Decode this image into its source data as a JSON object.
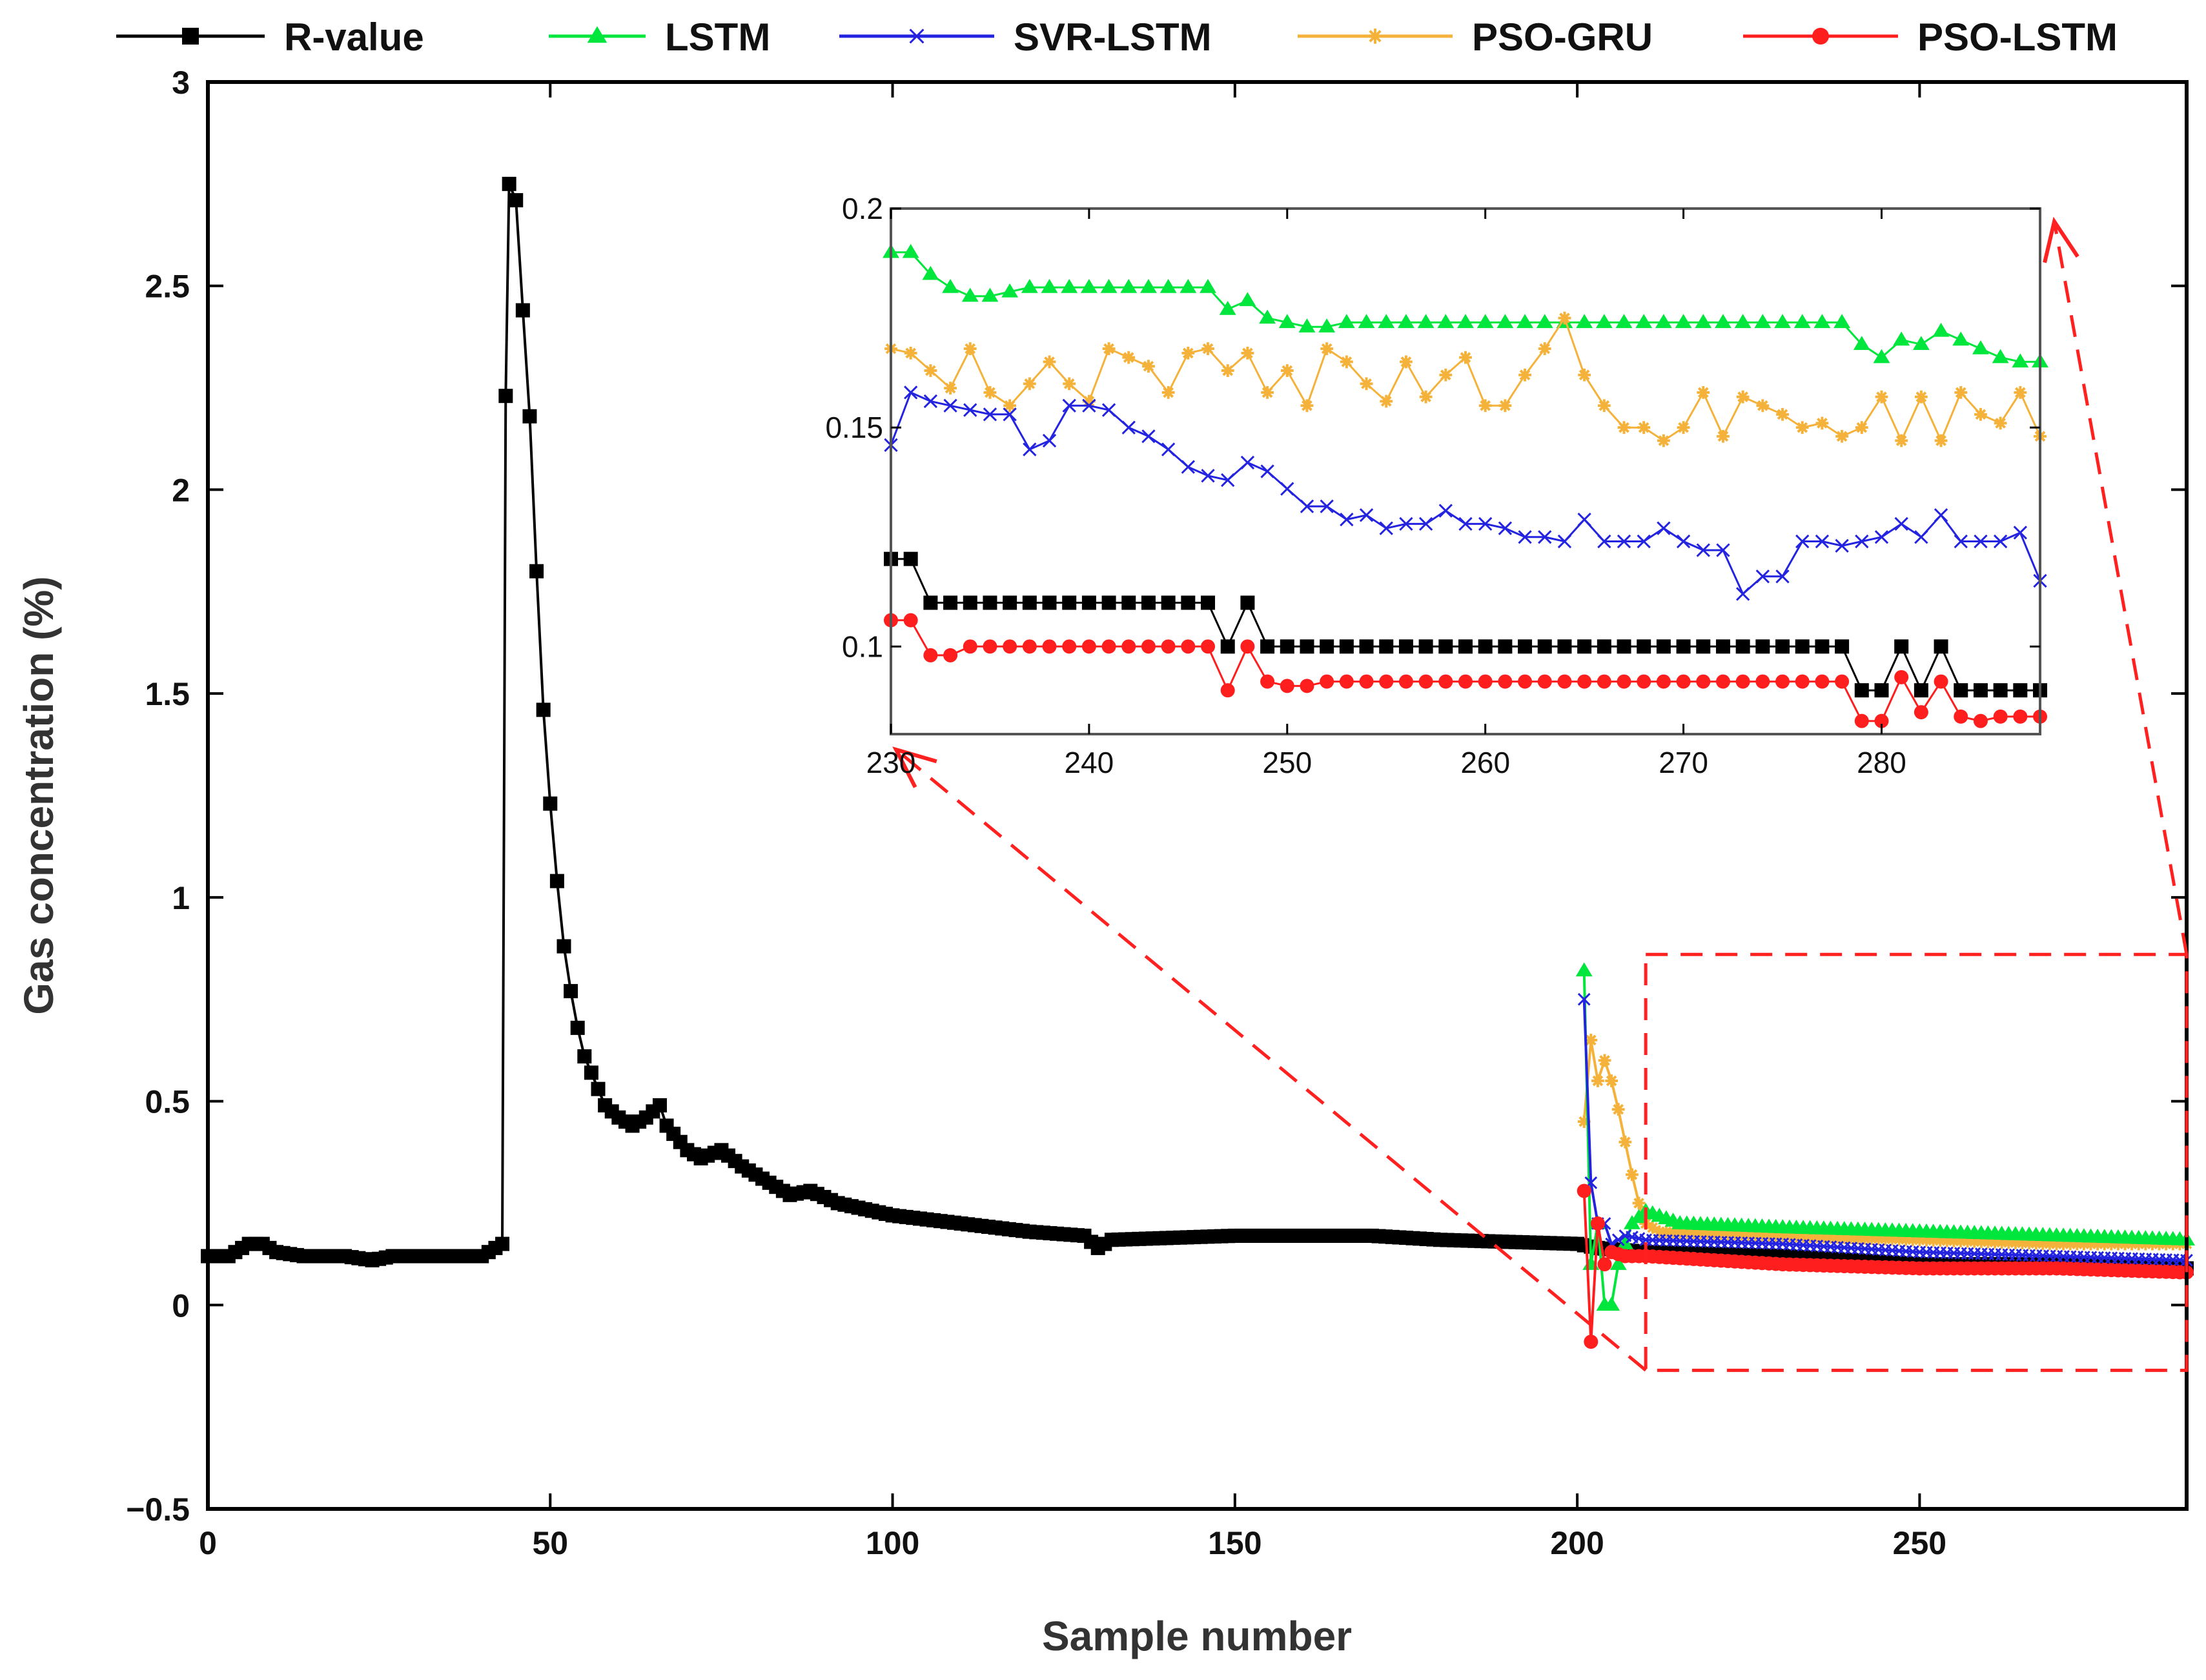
{
  "chart_data": {
    "type": "line",
    "xlabel": "Sample number",
    "ylabel": "Gas concentration (%)",
    "xlim": [
      0,
      289
    ],
    "ylim": [
      -0.5,
      3
    ],
    "xticks": [
      0,
      50,
      100,
      150,
      200,
      250
    ],
    "yticks": [
      -0.5,
      0,
      0.5,
      1,
      1.5,
      2,
      2.5,
      3
    ],
    "ytick_labels": [
      "−0.5",
      "0",
      "0.5",
      "1",
      "1.5",
      "2",
      "2.5",
      "3"
    ],
    "legend": {
      "placement": "top",
      "orientation": "horizontal"
    },
    "series": [
      {
        "name": "R-value",
        "color": "#000000",
        "marker": "square"
      },
      {
        "name": "LSTM",
        "color": "#00e63c",
        "marker": "triangle"
      },
      {
        "name": "SVR-LSTM",
        "color": "#2323e0",
        "marker": "x"
      },
      {
        "name": "PSO-GRU",
        "color": "#f5b23a",
        "marker": "star"
      },
      {
        "name": "PSO-LSTM",
        "color": "#ff1e1e",
        "marker": "circle"
      }
    ],
    "r_value_keypoints": [
      [
        0,
        0.12
      ],
      [
        3,
        0.12
      ],
      [
        6,
        0.15
      ],
      [
        8,
        0.15
      ],
      [
        10,
        0.13
      ],
      [
        14,
        0.12
      ],
      [
        20,
        0.12
      ],
      [
        24,
        0.11
      ],
      [
        27,
        0.12
      ],
      [
        40,
        0.12
      ],
      [
        42,
        0.14
      ],
      [
        43,
        0.15
      ],
      [
        43.5,
        2.23
      ],
      [
        44,
        2.75
      ],
      [
        45,
        2.71
      ],
      [
        46,
        2.44
      ],
      [
        47,
        2.18
      ],
      [
        48,
        1.8
      ],
      [
        49,
        1.46
      ],
      [
        50,
        1.23
      ],
      [
        51,
        1.04
      ],
      [
        52,
        0.88
      ],
      [
        53,
        0.77
      ],
      [
        54,
        0.68
      ],
      [
        55,
        0.61
      ],
      [
        56,
        0.57
      ],
      [
        57,
        0.53
      ],
      [
        58,
        0.49
      ],
      [
        60,
        0.46
      ],
      [
        62,
        0.44
      ],
      [
        64,
        0.46
      ],
      [
        66,
        0.49
      ],
      [
        67,
        0.44
      ],
      [
        70,
        0.38
      ],
      [
        72,
        0.36
      ],
      [
        75,
        0.38
      ],
      [
        78,
        0.34
      ],
      [
        82,
        0.3
      ],
      [
        85,
        0.27
      ],
      [
        88,
        0.28
      ],
      [
        92,
        0.25
      ],
      [
        100,
        0.22
      ],
      [
        110,
        0.2
      ],
      [
        120,
        0.18
      ],
      [
        128,
        0.17
      ],
      [
        130,
        0.14
      ],
      [
        132,
        0.16
      ],
      [
        150,
        0.17
      ],
      [
        160,
        0.17
      ],
      [
        170,
        0.17
      ],
      [
        180,
        0.16
      ],
      [
        200,
        0.15
      ],
      [
        203,
        0.14
      ],
      [
        210,
        0.13
      ],
      [
        230,
        0.12
      ],
      [
        250,
        0.1
      ],
      [
        270,
        0.1
      ],
      [
        289,
        0.09
      ]
    ],
    "models_overview": {
      "LSTM": [
        [
          201,
          0.82
        ],
        [
          202,
          0.1
        ],
        [
          203,
          0.2
        ],
        [
          204,
          0.0
        ],
        [
          205,
          0.0
        ],
        [
          206,
          0.1
        ],
        [
          208,
          0.2
        ],
        [
          210,
          0.23
        ],
        [
          215,
          0.2
        ],
        [
          230,
          0.19
        ],
        [
          250,
          0.18
        ],
        [
          270,
          0.17
        ],
        [
          289,
          0.16
        ]
      ],
      "SVR-LSTM": [
        [
          201,
          0.75
        ],
        [
          202,
          0.3
        ],
        [
          203,
          0.2
        ],
        [
          204,
          0.2
        ],
        [
          205,
          0.15
        ],
        [
          207,
          0.17
        ],
        [
          210,
          0.16
        ],
        [
          230,
          0.15
        ],
        [
          250,
          0.13
        ],
        [
          270,
          0.12
        ],
        [
          289,
          0.11
        ]
      ],
      "PSO-GRU": [
        [
          201,
          0.45
        ],
        [
          202,
          0.65
        ],
        [
          203,
          0.55
        ],
        [
          204,
          0.6
        ],
        [
          205,
          0.55
        ],
        [
          206,
          0.48
        ],
        [
          207,
          0.4
        ],
        [
          208,
          0.32
        ],
        [
          209,
          0.25
        ],
        [
          210,
          0.2
        ],
        [
          212,
          0.18
        ],
        [
          230,
          0.17
        ],
        [
          250,
          0.16
        ],
        [
          270,
          0.15
        ],
        [
          289,
          0.15
        ]
      ],
      "PSO-LSTM": [
        [
          201,
          0.28
        ],
        [
          202,
          -0.09
        ],
        [
          203,
          0.2
        ],
        [
          204,
          0.1
        ],
        [
          205,
          0.13
        ],
        [
          207,
          0.12
        ],
        [
          210,
          0.12
        ],
        [
          230,
          0.1
        ],
        [
          250,
          0.09
        ],
        [
          270,
          0.09
        ],
        [
          289,
          0.08
        ]
      ]
    },
    "inset": {
      "xlim": [
        230,
        288
      ],
      "ylim": [
        0.08,
        0.2
      ],
      "xticks": [
        230,
        240,
        250,
        260,
        270,
        280
      ],
      "yticks": [
        0.1,
        0.15,
        0.2
      ],
      "ytick_labels": [
        "0.1",
        "0.15",
        "0.2"
      ],
      "x": [
        230,
        231,
        232,
        233,
        234,
        235,
        236,
        237,
        238,
        239,
        240,
        241,
        242,
        243,
        244,
        245,
        246,
        247,
        248,
        249,
        250,
        251,
        252,
        253,
        254,
        255,
        256,
        257,
        258,
        259,
        260,
        261,
        262,
        263,
        264,
        265,
        266,
        267,
        268,
        269,
        270,
        271,
        272,
        273,
        274,
        275,
        276,
        277,
        278,
        279,
        280,
        281,
        282,
        283,
        284,
        285,
        286,
        287,
        288
      ],
      "series": {
        "R-value": [
          0.12,
          0.12,
          0.11,
          0.11,
          0.11,
          0.11,
          0.11,
          0.11,
          0.11,
          0.11,
          0.11,
          0.11,
          0.11,
          0.11,
          0.11,
          0.11,
          0.11,
          0.1,
          0.11,
          0.1,
          0.1,
          0.1,
          0.1,
          0.1,
          0.1,
          0.1,
          0.1,
          0.1,
          0.1,
          0.1,
          0.1,
          0.1,
          0.1,
          0.1,
          0.1,
          0.1,
          0.1,
          0.1,
          0.1,
          0.1,
          0.1,
          0.1,
          0.1,
          0.1,
          0.1,
          0.1,
          0.1,
          0.1,
          0.1,
          0.09,
          0.09,
          0.1,
          0.09,
          0.1,
          0.09,
          0.09,
          0.09,
          0.09,
          0.09
        ],
        "LSTM": [
          0.19,
          0.19,
          0.185,
          0.182,
          0.18,
          0.18,
          0.181,
          0.182,
          0.182,
          0.182,
          0.182,
          0.182,
          0.182,
          0.182,
          0.182,
          0.182,
          0.182,
          0.177,
          0.179,
          0.175,
          0.174,
          0.173,
          0.173,
          0.174,
          0.174,
          0.174,
          0.174,
          0.174,
          0.174,
          0.174,
          0.174,
          0.174,
          0.174,
          0.174,
          0.174,
          0.174,
          0.174,
          0.174,
          0.174,
          0.174,
          0.174,
          0.174,
          0.174,
          0.174,
          0.174,
          0.174,
          0.174,
          0.174,
          0.174,
          0.169,
          0.166,
          0.17,
          0.169,
          0.172,
          0.17,
          0.168,
          0.166,
          0.165,
          0.165
        ],
        "SVR-LSTM": [
          0.146,
          0.158,
          0.156,
          0.155,
          0.154,
          0.153,
          0.153,
          0.145,
          0.147,
          0.155,
          0.155,
          0.154,
          0.15,
          0.148,
          0.145,
          0.141,
          0.139,
          0.138,
          0.142,
          0.14,
          0.136,
          0.132,
          0.132,
          0.129,
          0.13,
          0.127,
          0.128,
          0.128,
          0.131,
          0.128,
          0.128,
          0.127,
          0.125,
          0.125,
          0.124,
          0.129,
          0.124,
          0.124,
          0.124,
          0.127,
          0.124,
          0.122,
          0.122,
          0.112,
          0.116,
          0.116,
          0.124,
          0.124,
          0.123,
          0.124,
          0.125,
          0.128,
          0.125,
          0.13,
          0.124,
          0.124,
          0.124,
          0.126,
          0.115
        ],
        "PSO-GRU": [
          0.168,
          0.167,
          0.163,
          0.159,
          0.168,
          0.158,
          0.155,
          0.16,
          0.165,
          0.16,
          0.156,
          0.168,
          0.166,
          0.164,
          0.158,
          0.167,
          0.168,
          0.163,
          0.167,
          0.158,
          0.163,
          0.155,
          0.168,
          0.165,
          0.16,
          0.156,
          0.165,
          0.157,
          0.162,
          0.166,
          0.155,
          0.155,
          0.162,
          0.168,
          0.175,
          0.162,
          0.155,
          0.15,
          0.15,
          0.147,
          0.15,
          0.158,
          0.148,
          0.157,
          0.155,
          0.153,
          0.15,
          0.151,
          0.148,
          0.15,
          0.157,
          0.147,
          0.157,
          0.147,
          0.158,
          0.153,
          0.151,
          0.158,
          0.148
        ],
        "PSO-LSTM": [
          0.106,
          0.106,
          0.098,
          0.098,
          0.1,
          0.1,
          0.1,
          0.1,
          0.1,
          0.1,
          0.1,
          0.1,
          0.1,
          0.1,
          0.1,
          0.1,
          0.1,
          0.09,
          0.1,
          0.092,
          0.091,
          0.091,
          0.092,
          0.092,
          0.092,
          0.092,
          0.092,
          0.092,
          0.092,
          0.092,
          0.092,
          0.092,
          0.092,
          0.092,
          0.092,
          0.092,
          0.092,
          0.092,
          0.092,
          0.092,
          0.092,
          0.092,
          0.092,
          0.092,
          0.092,
          0.092,
          0.092,
          0.092,
          0.092,
          0.083,
          0.083,
          0.093,
          0.085,
          0.092,
          0.084,
          0.083,
          0.084,
          0.084,
          0.084
        ]
      }
    },
    "zoom_box": {
      "x_range": [
        210,
        289
      ],
      "y_range": [
        -0.16,
        0.86
      ]
    }
  }
}
